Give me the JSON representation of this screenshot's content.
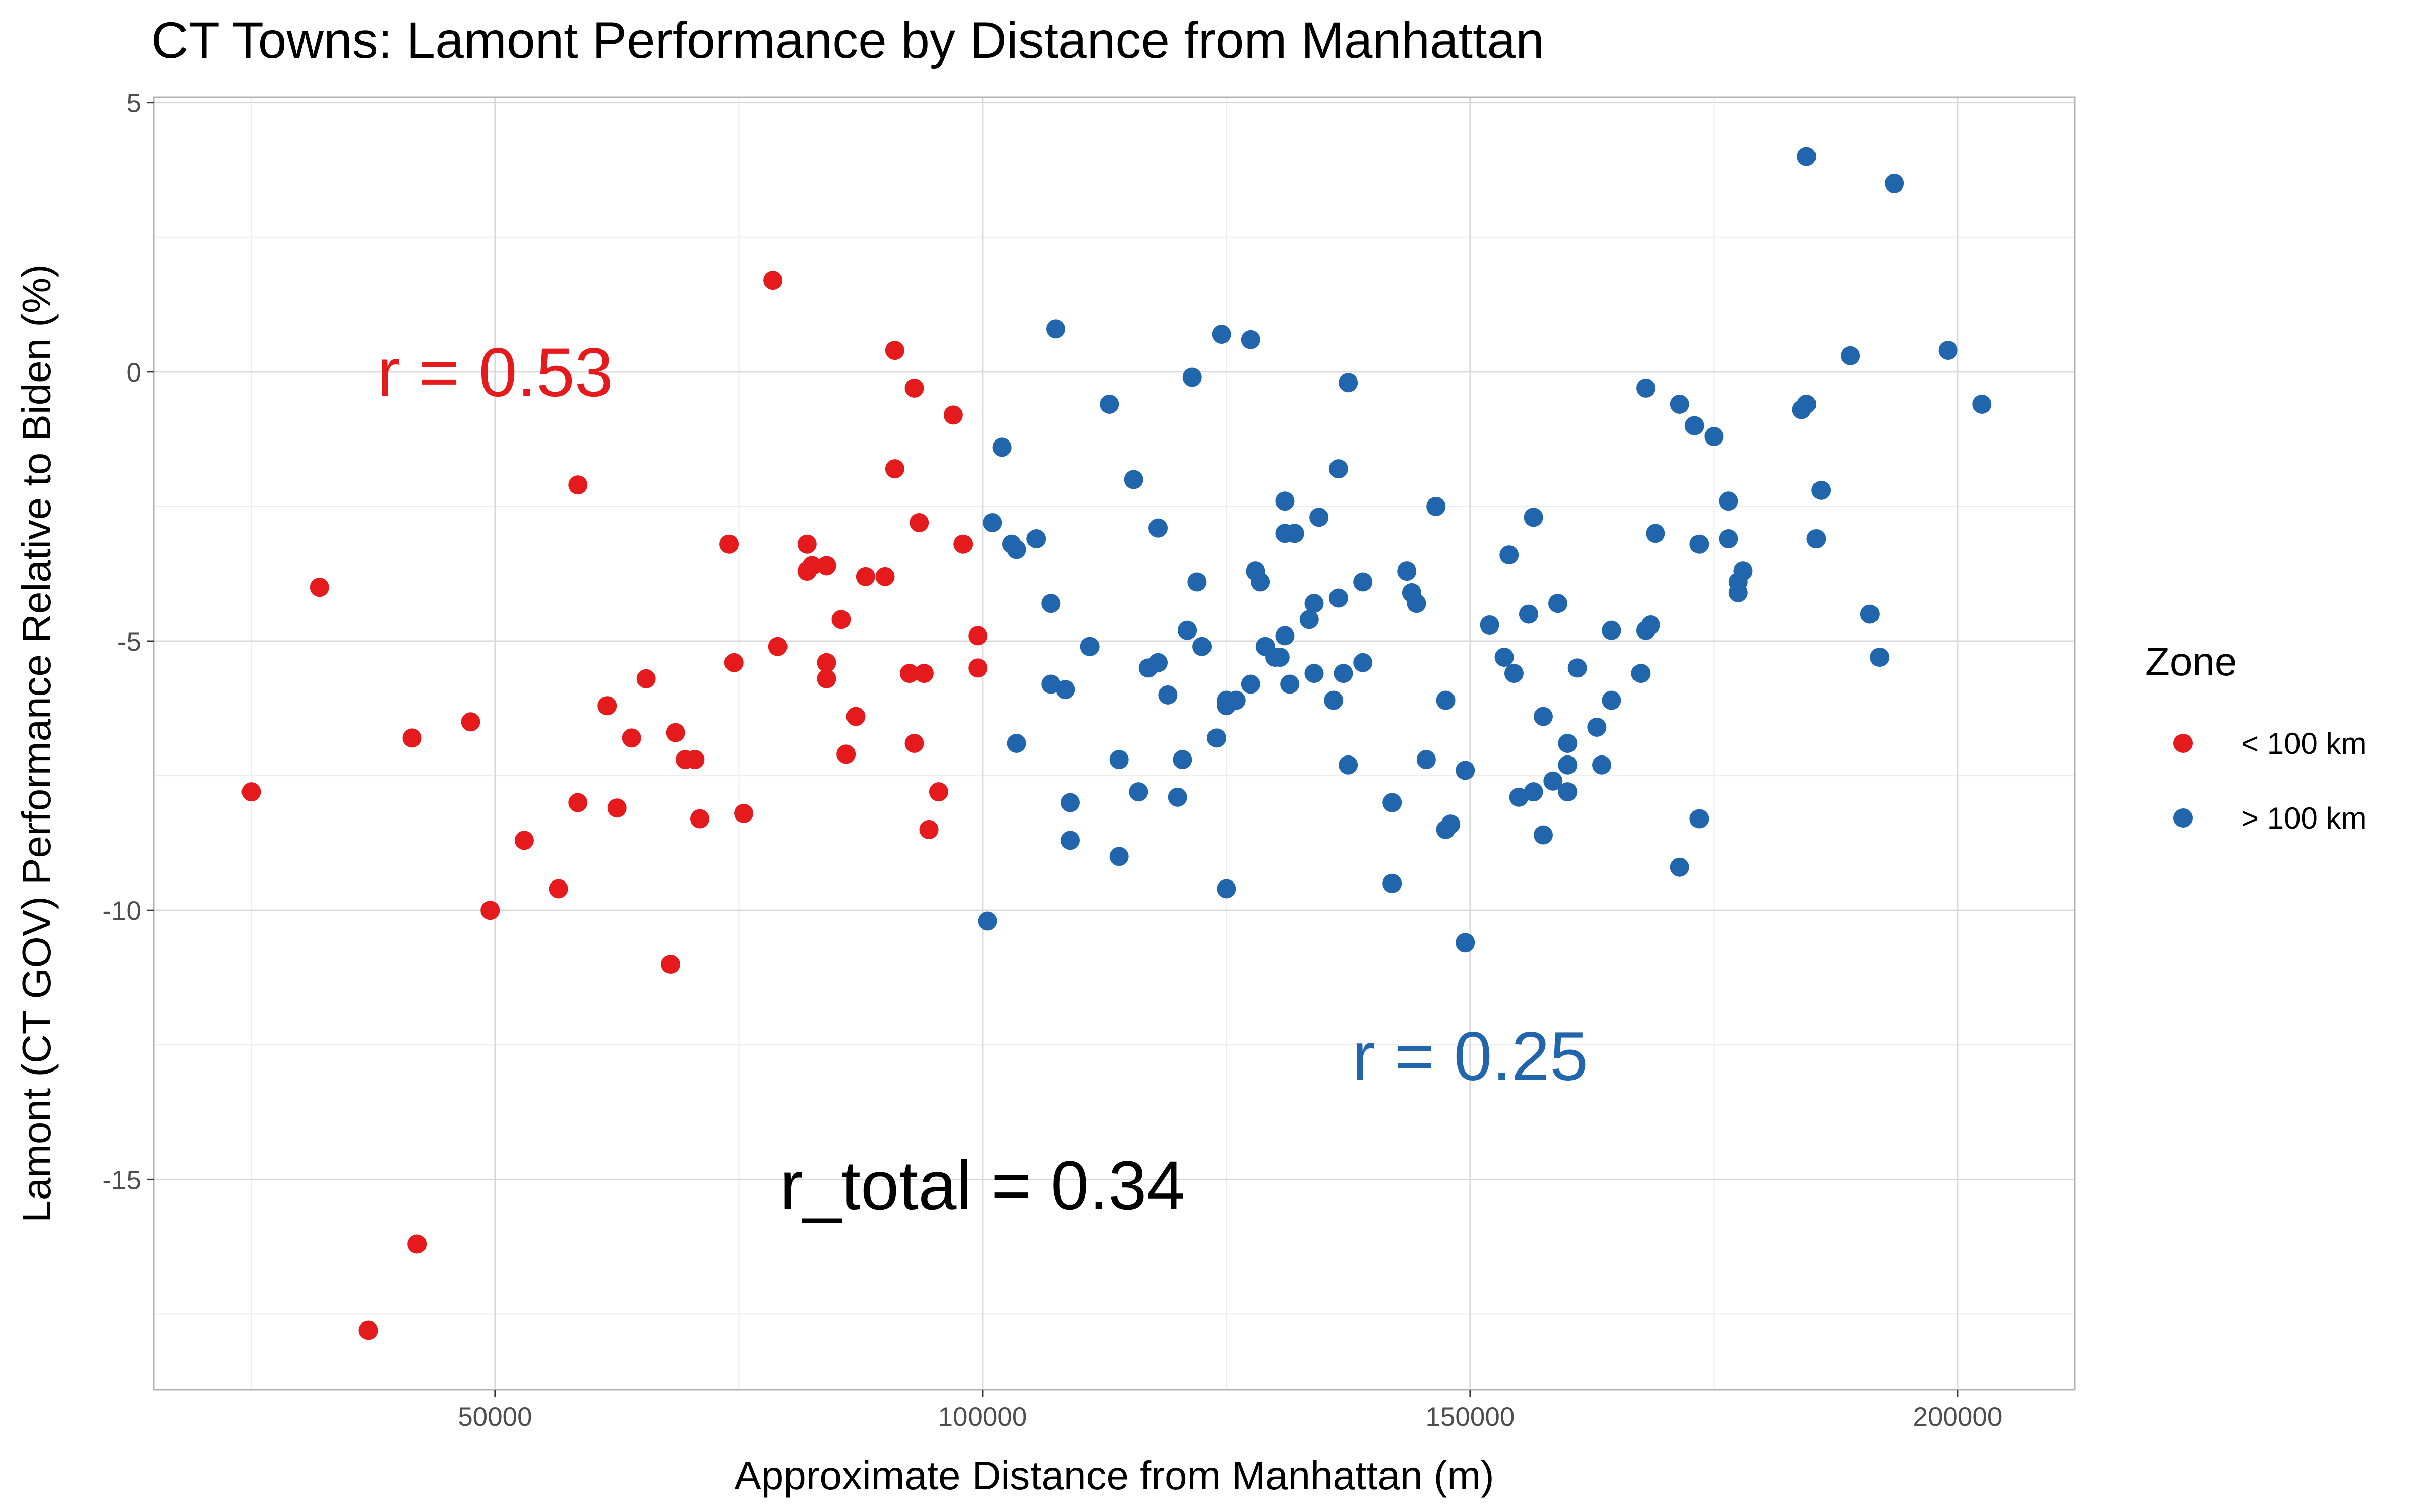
{
  "chart_data": {
    "type": "scatter",
    "title": "CT Towns: Lamont Performance by Distance from Manhattan",
    "xlabel": "Approximate Distance from Manhattan (m)",
    "ylabel": "Lamont (CT GOV) Performance Relative to Biden (%)",
    "xlim": [
      15000,
      212000
    ],
    "ylim": [
      -18.9,
      5.1
    ],
    "x_ticks": [
      50000,
      100000,
      150000,
      200000
    ],
    "x_tick_labels": [
      "50000",
      "100000",
      "150000",
      "200000"
    ],
    "y_ticks": [
      5,
      0,
      -5,
      -10,
      -15
    ],
    "y_tick_labels": [
      "5",
      "0",
      "-5",
      "-10",
      "-15"
    ],
    "grid": true,
    "legend": {
      "title": "Zone",
      "placement": "right",
      "entries": [
        {
          "label": "< 100 km",
          "color": "#E41A1C"
        },
        {
          "label": "> 100 km",
          "color": "#2166AC"
        }
      ]
    },
    "annotations": [
      {
        "text": "r = 0.53",
        "x": 50000,
        "y": 0,
        "color": "#E41A1C"
      },
      {
        "text": "r = 0.25",
        "x": 150000,
        "y": -12.7,
        "color": "#2166AC"
      },
      {
        "text": "r_total = 0.34",
        "x": 100000,
        "y": -15.1,
        "color": "#000000"
      }
    ],
    "series": [
      {
        "name": "< 100 km",
        "color": "#E41A1C",
        "points": [
          [
            25000,
            -7.8
          ],
          [
            32000,
            -4.0
          ],
          [
            37000,
            -17.8
          ],
          [
            41500,
            -6.8
          ],
          [
            42000,
            -16.2
          ],
          [
            47500,
            -6.5
          ],
          [
            49500,
            -10.0
          ],
          [
            53000,
            -8.7
          ],
          [
            56500,
            -9.6
          ],
          [
            58500,
            -2.1
          ],
          [
            58500,
            -8.0
          ],
          [
            61500,
            -6.2
          ],
          [
            62500,
            -8.1
          ],
          [
            64000,
            -6.8
          ],
          [
            65500,
            -5.7
          ],
          [
            68000,
            -11.0
          ],
          [
            68500,
            -6.7
          ],
          [
            69500,
            -7.2
          ],
          [
            70500,
            -7.2
          ],
          [
            71000,
            -8.3
          ],
          [
            74000,
            -3.2
          ],
          [
            74500,
            -5.4
          ],
          [
            75500,
            -8.2
          ],
          [
            78500,
            1.7
          ],
          [
            79000,
            -5.1
          ],
          [
            82000,
            -3.2
          ],
          [
            82000,
            -3.7
          ],
          [
            82500,
            -3.6
          ],
          [
            84000,
            -3.6
          ],
          [
            84000,
            -5.4
          ],
          [
            84000,
            -5.7
          ],
          [
            85500,
            -4.6
          ],
          [
            86000,
            -7.1
          ],
          [
            87000,
            -6.4
          ],
          [
            88000,
            -3.8
          ],
          [
            90000,
            -3.8
          ],
          [
            91000,
            0.4
          ],
          [
            91000,
            -1.8
          ],
          [
            92500,
            -5.6
          ],
          [
            93000,
            -0.3
          ],
          [
            93000,
            -6.9
          ],
          [
            93500,
            -2.8
          ],
          [
            94000,
            -5.6
          ],
          [
            94500,
            -8.5
          ],
          [
            95500,
            -7.8
          ],
          [
            97000,
            -0.8
          ],
          [
            98000,
            -3.2
          ],
          [
            99500,
            -4.9
          ],
          [
            99500,
            -5.5
          ]
        ]
      },
      {
        "name": "> 100 km",
        "color": "#2166AC",
        "points": [
          [
            100500,
            -10.2
          ],
          [
            101000,
            -2.8
          ],
          [
            102000,
            -1.4
          ],
          [
            103000,
            -3.2
          ],
          [
            103500,
            -6.9
          ],
          [
            103500,
            -3.3
          ],
          [
            105500,
            -3.1
          ],
          [
            107000,
            -4.3
          ],
          [
            107000,
            -5.8
          ],
          [
            107500,
            0.8
          ],
          [
            108500,
            -5.9
          ],
          [
            109000,
            -8.0
          ],
          [
            109000,
            -8.7
          ],
          [
            111000,
            -5.1
          ],
          [
            113000,
            -0.6
          ],
          [
            114000,
            -7.2
          ],
          [
            114000,
            -9.0
          ],
          [
            115500,
            -2.0
          ],
          [
            116000,
            -7.8
          ],
          [
            117000,
            -5.5
          ],
          [
            118000,
            -2.9
          ],
          [
            118000,
            -5.4
          ],
          [
            119000,
            -6.0
          ],
          [
            120000,
            -7.9
          ],
          [
            120500,
            -7.2
          ],
          [
            121000,
            -4.8
          ],
          [
            121500,
            -0.1
          ],
          [
            122000,
            -3.9
          ],
          [
            122500,
            -5.1
          ],
          [
            124000,
            -6.8
          ],
          [
            124500,
            0.7
          ],
          [
            125000,
            -9.6
          ],
          [
            125000,
            -6.1
          ],
          [
            125000,
            -6.2
          ],
          [
            126000,
            -6.1
          ],
          [
            127500,
            -5.8
          ],
          [
            127500,
            0.6
          ],
          [
            128000,
            -3.7
          ],
          [
            128500,
            -3.9
          ],
          [
            129000,
            -5.1
          ],
          [
            130000,
            -5.3
          ],
          [
            130500,
            -5.3
          ],
          [
            131000,
            -2.4
          ],
          [
            131000,
            -3.0
          ],
          [
            131000,
            -4.9
          ],
          [
            131500,
            -5.8
          ],
          [
            132000,
            -3.0
          ],
          [
            133500,
            -4.6
          ],
          [
            134000,
            -4.3
          ],
          [
            134000,
            -5.6
          ],
          [
            134500,
            -2.7
          ],
          [
            136000,
            -6.1
          ],
          [
            136500,
            -1.8
          ],
          [
            136500,
            -4.2
          ],
          [
            137000,
            -5.6
          ],
          [
            137500,
            -7.3
          ],
          [
            137500,
            -0.2
          ],
          [
            139000,
            -3.9
          ],
          [
            139000,
            -5.4
          ],
          [
            142000,
            -8.0
          ],
          [
            142000,
            -9.5
          ],
          [
            143500,
            -3.7
          ],
          [
            144000,
            -4.1
          ],
          [
            144500,
            -4.3
          ],
          [
            145500,
            -7.2
          ],
          [
            146500,
            -2.5
          ],
          [
            147500,
            -6.1
          ],
          [
            147500,
            -8.5
          ],
          [
            148000,
            -8.4
          ],
          [
            149500,
            -7.4
          ],
          [
            149500,
            -10.6
          ],
          [
            152000,
            -4.7
          ],
          [
            153500,
            -5.3
          ],
          [
            154000,
            -3.4
          ],
          [
            154500,
            -5.6
          ],
          [
            155000,
            -7.9
          ],
          [
            156000,
            -4.5
          ],
          [
            156500,
            -2.7
          ],
          [
            156500,
            -7.8
          ],
          [
            157500,
            -6.4
          ],
          [
            157500,
            -8.6
          ],
          [
            158500,
            -7.6
          ],
          [
            159000,
            -4.3
          ],
          [
            160000,
            -6.9
          ],
          [
            160000,
            -7.3
          ],
          [
            160000,
            -7.8
          ],
          [
            161000,
            -5.5
          ],
          [
            163000,
            -6.6
          ],
          [
            163500,
            -7.3
          ],
          [
            164500,
            -4.8
          ],
          [
            164500,
            -6.1
          ],
          [
            167500,
            -5.6
          ],
          [
            168000,
            -0.3
          ],
          [
            168000,
            -4.8
          ],
          [
            168500,
            -4.7
          ],
          [
            169000,
            -3.0
          ],
          [
            171500,
            -9.2
          ],
          [
            171500,
            -0.6
          ],
          [
            173000,
            -1.0
          ],
          [
            173500,
            -3.2
          ],
          [
            173500,
            -8.3
          ],
          [
            175000,
            -1.2
          ],
          [
            176500,
            -2.4
          ],
          [
            176500,
            -3.1
          ],
          [
            177500,
            -3.9
          ],
          [
            177500,
            -4.1
          ],
          [
            178000,
            -3.7
          ],
          [
            184000,
            -0.7
          ],
          [
            184500,
            -0.6
          ],
          [
            184500,
            4.0
          ],
          [
            185500,
            -3.1
          ],
          [
            186000,
            -2.2
          ],
          [
            189000,
            0.3
          ],
          [
            191000,
            -4.5
          ],
          [
            192000,
            -5.3
          ],
          [
            193500,
            3.5
          ],
          [
            199000,
            0.4
          ],
          [
            202500,
            -0.6
          ]
        ]
      }
    ]
  }
}
